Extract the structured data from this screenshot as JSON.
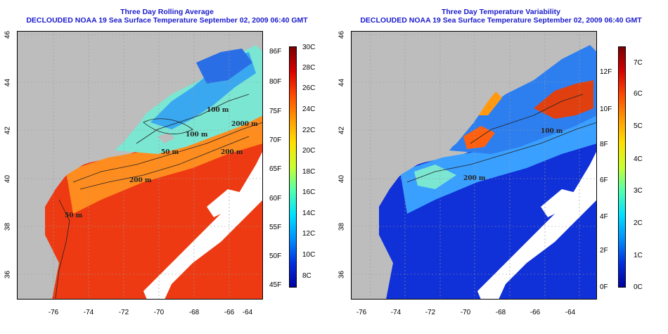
{
  "left": {
    "title_line1": "Three Day Rolling Average",
    "title_line2": "DECLOUDED NOAA 19 Sea Surface Temperature September 02, 2009 06:40 GMT",
    "lat_labels": [
      "46",
      "44",
      "42",
      "40",
      "38",
      "36"
    ],
    "lon_labels": [
      "-76",
      "-74",
      "-72",
      "-70",
      "-68",
      "-66",
      "-64"
    ],
    "depth_labels": [
      "100 m",
      "100 m",
      "50 m",
      "2000 m",
      "200 m",
      "200 m",
      "50 m"
    ],
    "colorbar_f": [
      "86F",
      "80F",
      "75F",
      "70F",
      "65F",
      "60F",
      "55F",
      "50F",
      "45F"
    ],
    "colorbar_c": [
      "30C",
      "28C",
      "26C",
      "24C",
      "22C",
      "20C",
      "18C",
      "16C",
      "14C",
      "12C",
      "10C",
      "8C"
    ]
  },
  "right": {
    "title_line1": "Three Day Temperature Variability",
    "title_line2": "DECLOUDED NOAA 19 Sea Surface Temperature September 02, 2009 06:40 GMT",
    "lat_labels": [
      "46",
      "44",
      "42",
      "40",
      "38",
      "36"
    ],
    "lon_labels": [
      "-76",
      "-74",
      "-72",
      "-70",
      "-68",
      "-66",
      "-64"
    ],
    "depth_labels": [
      "100 m",
      "200 m"
    ],
    "colorbar_f": [
      "12F",
      "10F",
      "8F",
      "6F",
      "4F",
      "2F",
      "0F"
    ],
    "colorbar_c": [
      "7C",
      "6C",
      "5C",
      "4C",
      "3C",
      "2C",
      "1C",
      "0C"
    ]
  },
  "colors": {
    "land": "#bdbdbd",
    "title": "#1a1acc",
    "grid": "#9a9a9a"
  }
}
